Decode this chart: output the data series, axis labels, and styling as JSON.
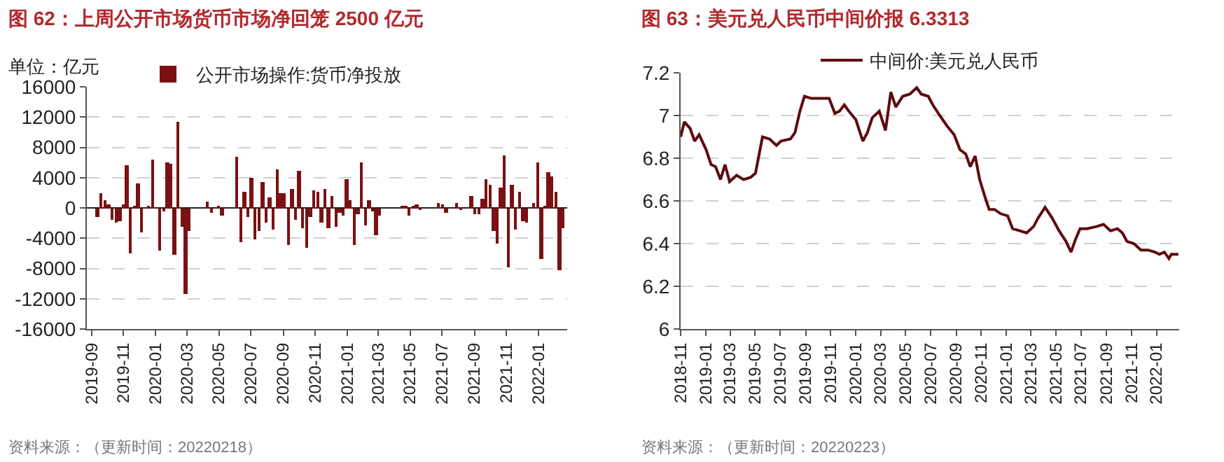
{
  "chart_data": [
    {
      "type": "bar",
      "title": "图 62：上周公开市场货币市场净回笼 2500 亿元",
      "ylabel": "单位：亿元",
      "x": [
        "2019-09-13",
        "2019-09-20",
        "2019-09-27",
        "2019-10-04",
        "2019-10-11",
        "2019-10-18",
        "2019-10-25",
        "2019-11-01",
        "2019-11-08",
        "2019-11-15",
        "2019-11-22",
        "2019-11-29",
        "2019-12-06",
        "2019-12-20",
        "2019-12-27",
        "2020-01-10",
        "2020-01-17",
        "2020-01-24",
        "2020-01-31",
        "2020-02-07",
        "2020-02-14",
        "2020-02-21",
        "2020-02-28",
        "2020-03-06",
        "2020-04-10",
        "2020-04-17",
        "2020-05-01",
        "2020-05-08",
        "2020-06-05",
        "2020-06-12",
        "2020-06-19",
        "2020-06-26",
        "2020-07-03",
        "2020-07-10",
        "2020-07-17",
        "2020-07-24",
        "2020-07-31",
        "2020-08-07",
        "2020-08-14",
        "2020-08-21",
        "2020-08-28",
        "2020-09-04",
        "2020-09-11",
        "2020-09-18",
        "2020-09-25",
        "2020-10-02",
        "2020-10-09",
        "2020-10-16",
        "2020-10-23",
        "2020-10-30",
        "2020-11-06",
        "2020-11-13",
        "2020-11-20",
        "2020-11-27",
        "2020-12-04",
        "2020-12-11",
        "2020-12-18",
        "2020-12-25",
        "2021-01-01",
        "2021-01-08",
        "2021-01-15",
        "2021-01-22",
        "2021-01-29",
        "2021-02-05",
        "2021-02-12",
        "2021-02-19",
        "2021-02-26",
        "2021-03-05",
        "2021-04-16",
        "2021-04-23",
        "2021-04-30",
        "2021-05-07",
        "2021-05-14",
        "2021-05-21",
        "2021-06-25",
        "2021-07-02",
        "2021-07-09",
        "2021-07-30",
        "2021-08-06",
        "2021-08-27",
        "2021-09-03",
        "2021-09-10",
        "2021-09-17",
        "2021-09-24",
        "2021-10-01",
        "2021-10-08",
        "2021-10-15",
        "2021-10-22",
        "2021-10-29",
        "2021-11-05",
        "2021-11-12",
        "2021-11-19",
        "2021-11-26",
        "2021-12-03",
        "2021-12-10",
        "2021-12-24",
        "2021-12-31",
        "2022-01-07",
        "2022-01-14",
        "2022-01-21",
        "2022-01-28",
        "2022-02-04",
        "2022-02-11",
        "2022-02-18"
      ],
      "series": [
        {
          "name": "公开市场操作:货币净投放",
          "color": "#7b1113",
          "values": [
            -1200,
            2000,
            1000,
            500,
            -1500,
            -2000,
            -1800,
            400,
            5700,
            -6000,
            300,
            3200,
            -3200,
            300,
            6400,
            -5700,
            -500,
            6100,
            5900,
            -6200,
            11300,
            -2500,
            -11300,
            -3000,
            800,
            -600,
            300,
            -1000,
            6800,
            -4600,
            2200,
            -1200,
            4000,
            -4200,
            -3000,
            3500,
            -2000,
            1300,
            -2900,
            5000,
            2000,
            2000,
            -4900,
            2500,
            -1500,
            4900,
            -2700,
            -5200,
            -1200,
            2400,
            2100,
            -2000,
            2500,
            -2700,
            1500,
            -2500,
            -600,
            -1000,
            3800,
            1100,
            -4900,
            -800,
            6000,
            -2400,
            1000,
            -400,
            -3600,
            -1000,
            200,
            300,
            -1100,
            300,
            500,
            -300,
            600,
            400,
            -600,
            600,
            -300,
            1500,
            -900,
            -800,
            1200,
            3800,
            3000,
            -3000,
            -4700,
            2700,
            6900,
            -7900,
            3000,
            -2900,
            2100,
            -1800,
            -2000,
            700,
            6100,
            -6800,
            300,
            4700,
            4200,
            2200,
            -8200,
            -2700
          ]
        }
      ],
      "xlim": [
        "2019-08-23",
        "2022-02-25"
      ],
      "xticks": [
        "2019-09",
        "2019-11",
        "2020-01",
        "2020-03",
        "2020-05",
        "2020-07",
        "2020-09",
        "2020-11",
        "2021-01",
        "2021-03",
        "2021-05",
        "2021-07",
        "2021-09",
        "2021-11",
        "2022-01"
      ],
      "ylim": [
        -16000,
        16000
      ],
      "yticks": [
        -16000,
        -12000,
        -8000,
        -4000,
        0,
        4000,
        8000,
        12000,
        16000
      ],
      "grid": "y",
      "legend": "top left",
      "annotations": [
        "资料来源：（更新时间：20220218）"
      ]
    },
    {
      "type": "line",
      "title": "图 63：美元兑人民币中间价报 6.3313",
      "x": [
        "2018-11-01",
        "2018-11-10",
        "2018-11-24",
        "2018-12-05",
        "2018-12-16",
        "2019-01-02",
        "2019-01-14",
        "2019-01-25",
        "2019-02-06",
        "2019-02-17",
        "2019-02-28",
        "2019-03-17",
        "2019-04-03",
        "2019-04-20",
        "2019-05-02",
        "2019-05-19",
        "2019-06-05",
        "2019-06-22",
        "2019-07-03",
        "2019-07-26",
        "2019-08-06",
        "2019-08-18",
        "2019-08-29",
        "2019-09-15",
        "2019-10-08",
        "2019-10-28",
        "2019-11-11",
        "2019-11-22",
        "2019-12-04",
        "2019-12-15",
        "2020-01-01",
        "2020-01-18",
        "2020-01-29",
        "2020-02-10",
        "2020-02-27",
        "2020-03-13",
        "2020-03-26",
        "2020-04-07",
        "2020-04-24",
        "2020-05-11",
        "2020-05-28",
        "2020-06-08",
        "2020-06-25",
        "2020-07-06",
        "2020-07-23",
        "2020-08-10",
        "2020-08-27",
        "2020-09-10",
        "2020-09-24",
        "2020-10-05",
        "2020-10-17",
        "2020-10-28",
        "2020-11-08",
        "2020-11-20",
        "2020-12-03",
        "2020-12-18",
        "2021-01-04",
        "2021-01-16",
        "2021-02-02",
        "2021-02-19",
        "2021-03-08",
        "2021-03-19",
        "2021-04-05",
        "2021-04-22",
        "2021-05-09",
        "2021-05-26",
        "2021-06-07",
        "2021-06-18",
        "2021-06-29",
        "2021-07-16",
        "2021-08-08",
        "2021-08-25",
        "2021-09-11",
        "2021-09-28",
        "2021-10-10",
        "2021-10-21",
        "2021-11-07",
        "2021-11-24",
        "2021-12-11",
        "2021-12-28",
        "2022-01-08",
        "2022-01-20",
        "2022-01-31",
        "2022-02-06",
        "2022-02-23"
      ],
      "series": [
        {
          "name": "中间价:美元兑人民币",
          "color": "#5e0b0e",
          "values": [
            6.9,
            6.97,
            6.94,
            6.88,
            6.91,
            6.84,
            6.77,
            6.76,
            6.7,
            6.77,
            6.69,
            6.72,
            6.7,
            6.71,
            6.73,
            6.9,
            6.89,
            6.86,
            6.88,
            6.89,
            6.92,
            7.02,
            7.09,
            7.08,
            7.08,
            7.08,
            7.01,
            7.02,
            7.05,
            7.02,
            6.98,
            6.88,
            6.92,
            6.99,
            7.02,
            6.93,
            7.11,
            7.04,
            7.09,
            7.1,
            7.13,
            7.1,
            7.09,
            7.05,
            7.0,
            6.95,
            6.91,
            6.84,
            6.82,
            6.76,
            6.81,
            6.7,
            6.63,
            6.56,
            6.56,
            6.54,
            6.53,
            6.47,
            6.46,
            6.45,
            6.48,
            6.52,
            6.57,
            6.52,
            6.46,
            6.41,
            6.36,
            6.42,
            6.47,
            6.47,
            6.48,
            6.49,
            6.46,
            6.47,
            6.45,
            6.41,
            6.4,
            6.37,
            6.37,
            6.36,
            6.35,
            6.36,
            6.33,
            6.35,
            6.35
          ]
        }
      ],
      "xlim": [
        "2018-11-01",
        "2022-02-25"
      ],
      "xticks": [
        "2018-11",
        "2019-01",
        "2019-03",
        "2019-05",
        "2019-07",
        "2019-09",
        "2019-11",
        "2020-01",
        "2020-03",
        "2020-05",
        "2020-07",
        "2020-09",
        "2020-11",
        "2021-01",
        "2021-03",
        "2021-05",
        "2021-07",
        "2021-09",
        "2021-11",
        "2022-01"
      ],
      "ylim": [
        6,
        7.2
      ],
      "yticks": [
        6,
        6.2,
        6.4,
        6.6,
        6.8,
        7,
        7.2
      ],
      "grid": "y",
      "legend": "top",
      "line_style": "solid",
      "marker": "none",
      "annotations": [
        "资料来源：（更新时间：20220223）"
      ]
    }
  ]
}
